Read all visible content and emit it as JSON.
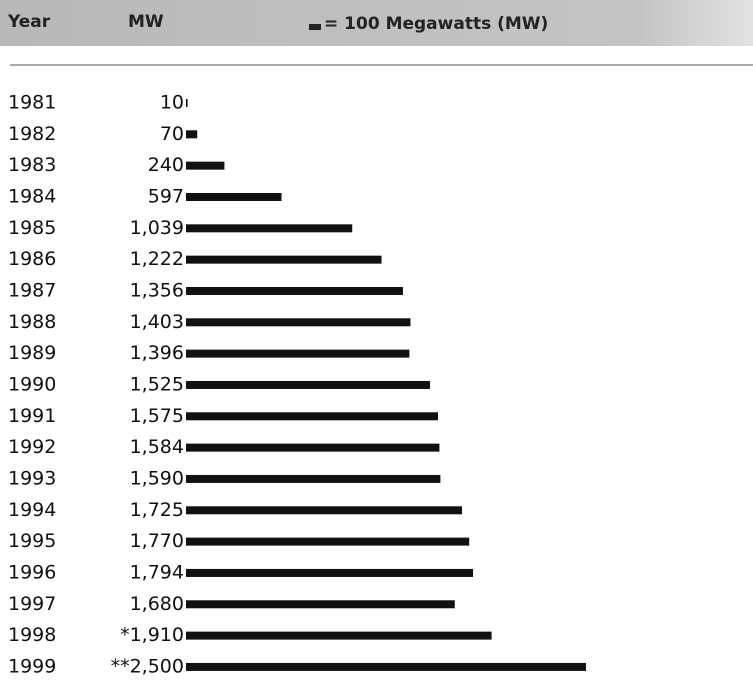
{
  "chart_data": {
    "type": "bar",
    "orientation": "horizontal",
    "column_headers": [
      "Year",
      "MW"
    ],
    "legend_label": "= 100 Megawatts (MW)",
    "categories": [
      "1981",
      "1982",
      "1983",
      "1984",
      "1985",
      "1986",
      "1987",
      "1988",
      "1989",
      "1990",
      "1991",
      "1992",
      "1993",
      "1994",
      "1995",
      "1996",
      "1997",
      "1998",
      "1999"
    ],
    "values": [
      10,
      70,
      240,
      597,
      1039,
      1222,
      1356,
      1403,
      1396,
      1525,
      1575,
      1584,
      1590,
      1725,
      1770,
      1794,
      1680,
      1910,
      2500
    ],
    "value_labels": [
      "10",
      "70",
      "240",
      "597",
      "1,039",
      "1,222",
      "1,356",
      "1,403",
      "1,396",
      "1,525",
      "1,575",
      "1,584",
      "1,590",
      "1,725",
      "1,770",
      "1,794",
      "1,680",
      "*1,910",
      "**2,500"
    ],
    "color": "#111111"
  }
}
